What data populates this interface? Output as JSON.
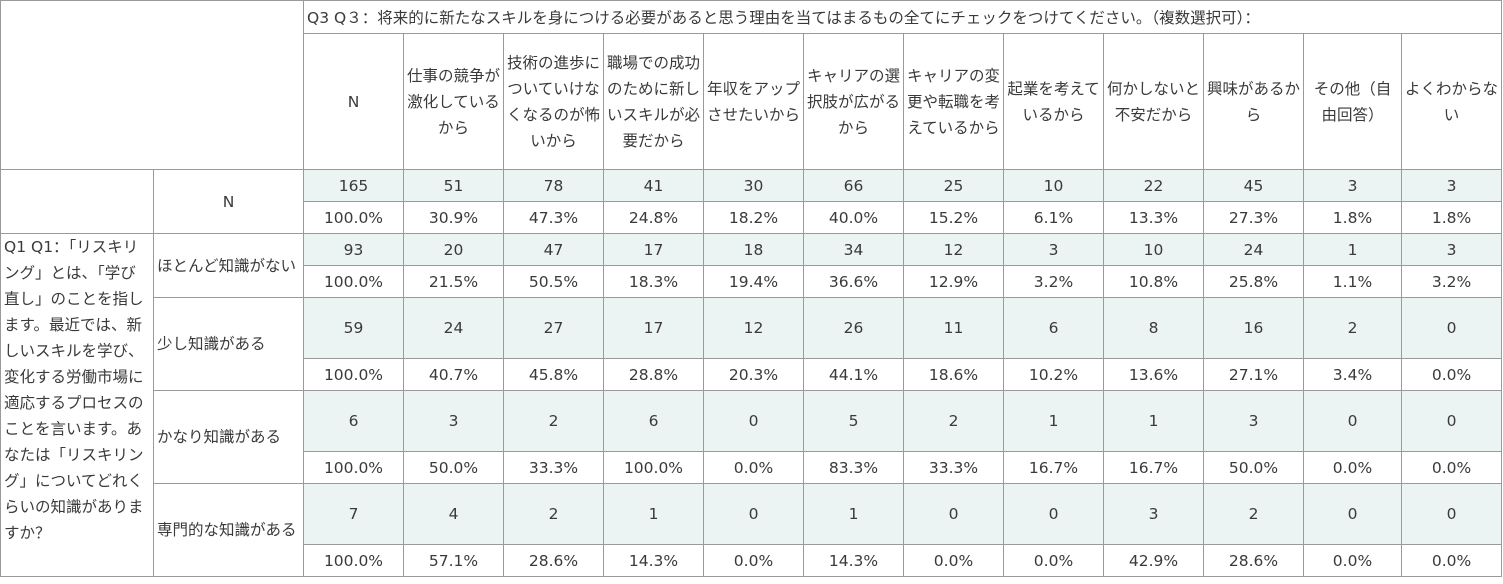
{
  "q3_header": "Q3 Q３：将来的に新たなスキルを身につける必要があると思う理由を当てはまるもの全てにチェックをつけてください。（複数選択可）：",
  "q1_header": "Q1 Q1：「リスキリング」とは、「学び直し」のことを指します。最近では、新しいスキルを学び、変化する労働市場に適応するプロセスのことを言います。あなたは「リスキリング」についてどれくらいの知識がありますか？",
  "columns": [
    "N",
    "仕事の競争が激化しているから",
    "技術の進歩についていけなくなるのが怖いから",
    "職場での成功のために新しいスキルが必要だから",
    "年収をアップさせたいから",
    "キャリアの選択肢が広がるから",
    "キャリアの変更や転職を考えているから",
    "起業を考えているから",
    "何かしないと不安だから",
    "興味があるから",
    "その他（自由回答）",
    "よくわからない"
  ],
  "total": {
    "label": "N",
    "counts": [
      "165",
      "51",
      "78",
      "41",
      "30",
      "66",
      "25",
      "10",
      "22",
      "45",
      "3",
      "3"
    ],
    "percents": [
      "100.0%",
      "30.9%",
      "47.3%",
      "24.8%",
      "18.2%",
      "40.0%",
      "15.2%",
      "6.1%",
      "13.3%",
      "27.3%",
      "1.8%",
      "1.8%"
    ]
  },
  "rows": [
    {
      "label": "ほとんど知識がない",
      "counts": [
        "93",
        "20",
        "47",
        "17",
        "18",
        "34",
        "12",
        "3",
        "10",
        "24",
        "1",
        "3"
      ],
      "percents": [
        "100.0%",
        "21.5%",
        "50.5%",
        "18.3%",
        "19.4%",
        "36.6%",
        "12.9%",
        "3.2%",
        "10.8%",
        "25.8%",
        "1.1%",
        "3.2%"
      ]
    },
    {
      "label": "少し知識がある",
      "counts": [
        "59",
        "24",
        "27",
        "17",
        "12",
        "26",
        "11",
        "6",
        "8",
        "16",
        "2",
        "0"
      ],
      "percents": [
        "100.0%",
        "40.7%",
        "45.8%",
        "28.8%",
        "20.3%",
        "44.1%",
        "18.6%",
        "10.2%",
        "13.6%",
        "27.1%",
        "3.4%",
        "0.0%"
      ]
    },
    {
      "label": "かなり知識がある",
      "counts": [
        "6",
        "3",
        "2",
        "6",
        "0",
        "5",
        "2",
        "1",
        "1",
        "3",
        "0",
        "0"
      ],
      "percents": [
        "100.0%",
        "50.0%",
        "33.3%",
        "100.0%",
        "0.0%",
        "83.3%",
        "33.3%",
        "16.7%",
        "16.7%",
        "50.0%",
        "0.0%",
        "0.0%"
      ]
    },
    {
      "label": "専門的な知識がある",
      "counts": [
        "7",
        "4",
        "2",
        "1",
        "0",
        "1",
        "0",
        "0",
        "3",
        "2",
        "0",
        "0"
      ],
      "percents": [
        "100.0%",
        "57.1%",
        "28.6%",
        "14.3%",
        "0.0%",
        "14.3%",
        "0.0%",
        "0.0%",
        "42.9%",
        "28.6%",
        "0.0%",
        "0.0%"
      ]
    }
  ]
}
